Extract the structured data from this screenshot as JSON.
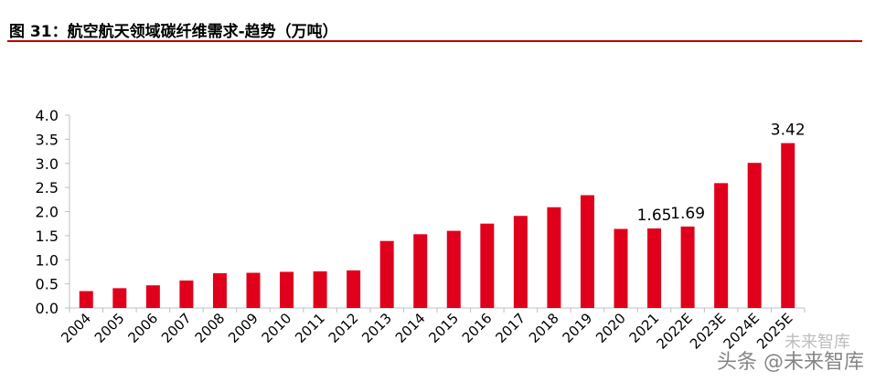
{
  "figure": {
    "title": "图 31：航空航天领域碳纤维需求-趋势（万吨）"
  },
  "watermark": {
    "line1": "未来智库",
    "line2": "头条 @未来智库"
  },
  "colors": {
    "bar": "#e0001b",
    "title_rule": "#c00000",
    "axis": "#bfbfbf"
  },
  "chart_data": {
    "type": "bar",
    "title": "",
    "xlabel": "",
    "ylabel": "",
    "categories": [
      "2004",
      "2005",
      "2006",
      "2007",
      "2008",
      "2009",
      "2010",
      "2011",
      "2012",
      "2013",
      "2014",
      "2015",
      "2016",
      "2017",
      "2018",
      "2019",
      "2020",
      "2021",
      "2022E",
      "2023E",
      "2024E",
      "2025E"
    ],
    "values": [
      0.35,
      0.41,
      0.47,
      0.57,
      0.72,
      0.73,
      0.75,
      0.76,
      0.78,
      1.39,
      1.53,
      1.6,
      1.75,
      1.91,
      2.09,
      2.34,
      1.64,
      1.65,
      1.69,
      2.59,
      3.01,
      3.42
    ],
    "data_labels": [
      {
        "category": "2021",
        "text": "1.65"
      },
      {
        "category": "2022E",
        "text": "1.69"
      },
      {
        "category": "2025E",
        "text": "3.42"
      }
    ],
    "ylim": [
      0,
      4.0
    ],
    "yticks": [
      "0.0",
      "0.5",
      "1.0",
      "1.5",
      "2.0",
      "2.5",
      "3.0",
      "3.5",
      "4.0"
    ],
    "grid": false,
    "legend": "none"
  }
}
